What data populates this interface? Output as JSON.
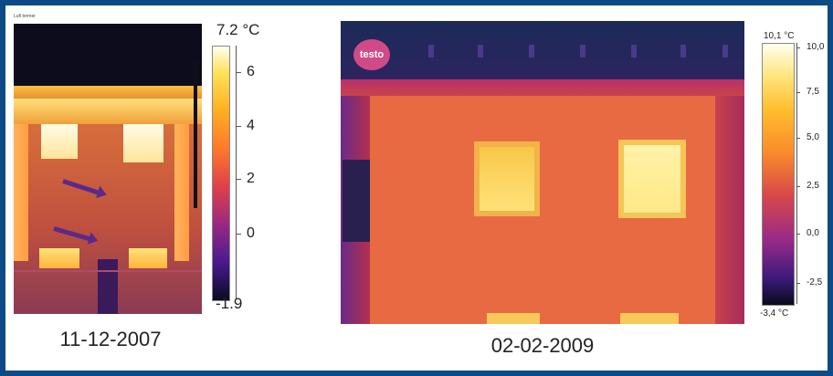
{
  "left_image": {
    "header_text": "Lufi termer",
    "scale_max": "7.2 °C",
    "scale_min": "-1.9",
    "scale_labels": [
      "6",
      "4",
      "2",
      "0"
    ],
    "date": "11-12-2007"
  },
  "right_image": {
    "logo": "testo",
    "scale_max": "10,1 °C",
    "scale_min": "-3,4 °C",
    "scale_labels": [
      "10,0",
      "7,5",
      "5,0",
      "2,5",
      "0,0",
      "-2,5"
    ],
    "date": "02-02-2009"
  },
  "colors": {
    "border": "#0d4a86",
    "hot": "#ffe680",
    "cold": "#0a0a1a"
  }
}
